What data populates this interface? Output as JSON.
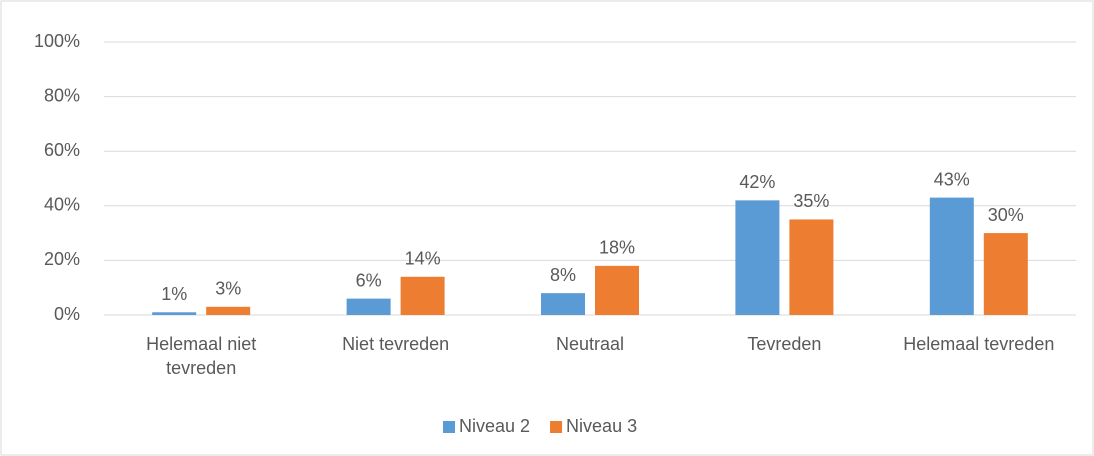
{
  "chart_data": {
    "type": "bar",
    "categories": [
      "Helemaal niet tevreden",
      "Niet tevreden",
      "Neutraal",
      "Tevreden",
      "Helemaal tevreden"
    ],
    "series": [
      {
        "name": "Niveau 2",
        "color": "#5b9bd5",
        "values": [
          1,
          6,
          8,
          42,
          43
        ],
        "value_labels": [
          "1%",
          "6%",
          "8%",
          "42%",
          "43%"
        ]
      },
      {
        "name": "Niveau 3",
        "color": "#ed7d31",
        "values": [
          3,
          14,
          18,
          35,
          30
        ],
        "value_labels": [
          "3%",
          "14%",
          "18%",
          "35%",
          "30%"
        ]
      }
    ],
    "ylim": [
      0,
      100
    ],
    "yticks": [
      {
        "value": 0,
        "label": "0%"
      },
      {
        "value": 20,
        "label": "20%"
      },
      {
        "value": 40,
        "label": "40%"
      },
      {
        "value": 60,
        "label": "60%"
      },
      {
        "value": 80,
        "label": "80%"
      },
      {
        "value": 100,
        "label": "100%"
      }
    ],
    "grid": true,
    "legend": "bottom"
  }
}
